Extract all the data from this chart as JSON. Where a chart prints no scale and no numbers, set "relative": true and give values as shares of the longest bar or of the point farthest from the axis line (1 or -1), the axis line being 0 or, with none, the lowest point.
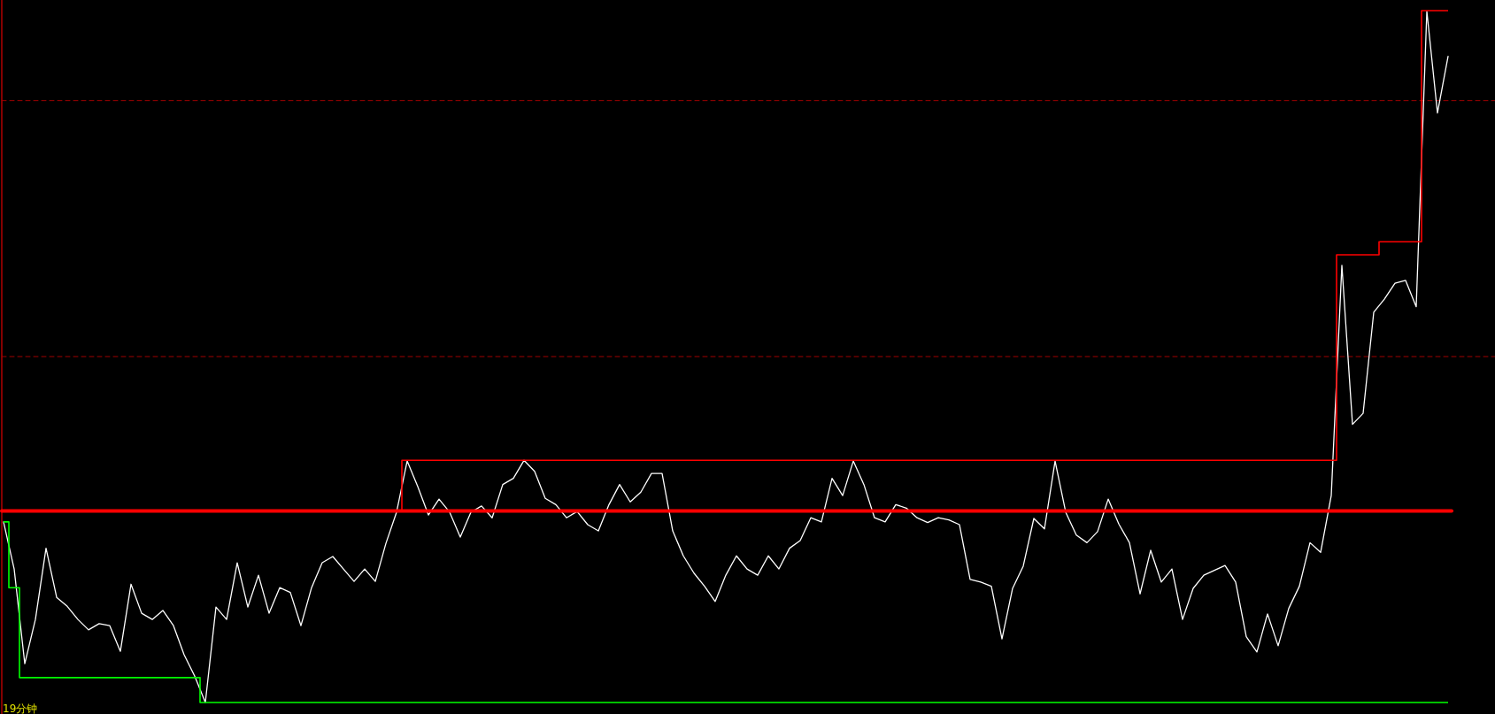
{
  "chart_data": {
    "type": "line",
    "relative": true,
    "categories": [
      null,
      null,
      null,
      null,
      null,
      null,
      null,
      null,
      null,
      null,
      null,
      null,
      null,
      null,
      null,
      null,
      null,
      null,
      null,
      null,
      null,
      null,
      null,
      null,
      null,
      null,
      null,
      null,
      null,
      null,
      null,
      null,
      null,
      null,
      null,
      null,
      null,
      null,
      null,
      null,
      null,
      null,
      null,
      null,
      null,
      null,
      null,
      null,
      null,
      null,
      null,
      null,
      null,
      null,
      null,
      null,
      null,
      null,
      null,
      null,
      null,
      null,
      null,
      null,
      null,
      null,
      null,
      null,
      null,
      null,
      null,
      null,
      null,
      null,
      null,
      null,
      null,
      null,
      null,
      null,
      null,
      null,
      null,
      null,
      null,
      null,
      null,
      null,
      null,
      null,
      null,
      null,
      null,
      null,
      null,
      null,
      null,
      null,
      null,
      null,
      null,
      null,
      null,
      null,
      null,
      null,
      null,
      null,
      null,
      null,
      null,
      null,
      null,
      null,
      null,
      null,
      null,
      null,
      null,
      null,
      null,
      null,
      null,
      null,
      null,
      null,
      null,
      null,
      null,
      null,
      null,
      null,
      null,
      null,
      null,
      null,
      null
    ],
    "series": [
      {
        "color": "#ffffff",
        "values": [
          0.261,
          0.193,
          0.056,
          0.12,
          0.223,
          0.152,
          0.139,
          0.12,
          0.105,
          0.114,
          0.111,
          0.074,
          0.171,
          0.129,
          0.12,
          0.133,
          0.111,
          0.069,
          0.038,
          0,
          0.138,
          0.12,
          0.202,
          0.138,
          0.184,
          0.129,
          0.166,
          0.159,
          0.111,
          0.166,
          0.202,
          0.211,
          0.193,
          0.175,
          0.193,
          0.175,
          0.23,
          0.275,
          0.349,
          0.312,
          0.271,
          0.294,
          0.275,
          0.239,
          0.275,
          0.284,
          0.267,
          0.315,
          0.324,
          0.35,
          0.334,
          0.295,
          0.286,
          0.267,
          0.276,
          0.257,
          0.248,
          0.286,
          0.315,
          0.29,
          0.304,
          0.331,
          0.331,
          0.248,
          0.212,
          0.187,
          0.168,
          0.146,
          0.184,
          0.212,
          0.193,
          0.184,
          0.212,
          0.193,
          0.223,
          0.234,
          0.267,
          0.261,
          0.324,
          0.299,
          0.349,
          0.315,
          0.267,
          0.261,
          0.286,
          0.281,
          0.267,
          0.26,
          0.267,
          0.264,
          0.257,
          0.178,
          0.174,
          0.168,
          0.092,
          0.165,
          0.197,
          0.266,
          0.251,
          0.349,
          0.275,
          0.242,
          0.231,
          0.247,
          0.294,
          0.258,
          0.231,
          0.157,
          0.22,
          0.174,
          0.193,
          0.12,
          0.165,
          0.184,
          0.191,
          0.198,
          0.174,
          0.095,
          0.073,
          0.128,
          0.082,
          0.136,
          0.168,
          0.231,
          0.217,
          0.299,
          0.632,
          0.402,
          0.418,
          0.564,
          0.583,
          0.606,
          0.61,
          0.572,
          0.999,
          0.852,
          0.934
        ]
      },
      {
        "type": "step",
        "color": "#ff0000",
        "values": [
          null,
          null,
          null,
          null,
          null,
          null,
          null,
          null,
          null,
          null,
          null,
          null,
          null,
          null,
          null,
          null,
          null,
          null,
          null,
          null,
          null,
          null,
          null,
          null,
          null,
          null,
          null,
          null,
          null,
          null,
          null,
          null,
          null,
          null,
          null,
          null,
          null,
          0.277,
          0.35,
          0.35,
          0.35,
          0.35,
          0.35,
          0.35,
          0.35,
          0.35,
          0.35,
          0.35,
          0.35,
          0.35,
          0.35,
          0.35,
          0.35,
          0.35,
          0.35,
          0.35,
          0.35,
          0.35,
          0.35,
          0.35,
          0.35,
          0.35,
          0.35,
          0.35,
          0.35,
          0.35,
          0.35,
          0.35,
          0.35,
          0.35,
          0.35,
          0.35,
          0.35,
          0.35,
          0.35,
          0.35,
          0.35,
          0.35,
          0.35,
          0.35,
          0.35,
          0.35,
          0.35,
          0.35,
          0.35,
          0.35,
          0.35,
          0.35,
          0.35,
          0.35,
          0.35,
          0.35,
          0.35,
          0.35,
          0.35,
          0.35,
          0.35,
          0.35,
          0.35,
          0.35,
          0.35,
          0.35,
          0.35,
          0.35,
          0.35,
          0.35,
          0.35,
          0.35,
          0.35,
          0.35,
          0.35,
          0.35,
          0.35,
          0.35,
          0.35,
          0.35,
          0.35,
          0.35,
          0.35,
          0.35,
          0.35,
          0.35,
          0.35,
          0.35,
          0.35,
          0.35,
          0.647,
          0.647,
          0.647,
          0.647,
          0.666,
          0.666,
          0.666,
          0.666,
          1,
          1,
          1
        ]
      },
      {
        "type": "step",
        "color": "#00ff00",
        "values": [
          0.261,
          0.166,
          0.036,
          0.036,
          0.036,
          0.036,
          0.036,
          0.036,
          0.036,
          0.036,
          0.036,
          0.036,
          0.036,
          0.036,
          0.036,
          0.036,
          0.036,
          0.036,
          0.036,
          0,
          0,
          0,
          0,
          0,
          0,
          0,
          0,
          0,
          0,
          0,
          0,
          0,
          0,
          0,
          0,
          0,
          0,
          0,
          0,
          0,
          0,
          0,
          0,
          0,
          0,
          0,
          0,
          0,
          0,
          0,
          0,
          0,
          0,
          0,
          0,
          0,
          0,
          0,
          0,
          0,
          0,
          0,
          0,
          0,
          0,
          0,
          0,
          0,
          0,
          0,
          0,
          0,
          0,
          0,
          0,
          0,
          0,
          0,
          0,
          0,
          0,
          0,
          0,
          0,
          0,
          0,
          0,
          0,
          0,
          0,
          0,
          0,
          0,
          0,
          0,
          0,
          0,
          0,
          0,
          0,
          0,
          0,
          0,
          0,
          0,
          0,
          0,
          0,
          0,
          0,
          0,
          0,
          0,
          0,
          0,
          0,
          0,
          0,
          0,
          0,
          0,
          0,
          0,
          0,
          0,
          0,
          0,
          0,
          0,
          0,
          0,
          0,
          0,
          0,
          0,
          0,
          0
        ]
      }
    ],
    "ref_lines": [
      {
        "axis": "y",
        "value": 0.87,
        "color": "#a00000",
        "line_style": "dashed"
      },
      {
        "axis": "y",
        "value": 0.5,
        "color": "#a00000",
        "line_style": "dashed"
      },
      {
        "axis": "y",
        "value": 0.277,
        "color": "#ff0000",
        "line_style": "solid"
      }
    ],
    "annotations": [
      "19分钟"
    ]
  }
}
